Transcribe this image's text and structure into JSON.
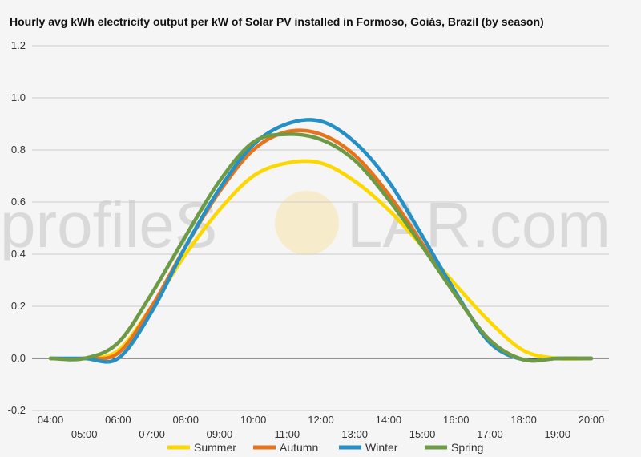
{
  "title": "Hourly avg kWh electricity output per kW of Solar PV installed in Formoso, Goiás, Brazil (by season)",
  "watermark": {
    "left": "profileS",
    "middle": "O",
    "right": "LAR.com"
  },
  "chart_data": {
    "type": "line",
    "title": "Hourly avg kWh electricity output per kW of Solar PV installed in Formoso, Goiás, Brazil (by season)",
    "x": [
      "04:00",
      "05:00",
      "06:00",
      "07:00",
      "08:00",
      "09:00",
      "10:00",
      "11:00",
      "12:00",
      "13:00",
      "14:00",
      "15:00",
      "16:00",
      "17:00",
      "18:00",
      "19:00",
      "20:00"
    ],
    "x_labels_upper": [
      "04:00",
      "06:00",
      "08:00",
      "10:00",
      "12:00",
      "14:00",
      "16:00",
      "18:00",
      "20:00"
    ],
    "x_labels_lower": [
      "05:00",
      "07:00",
      "09:00",
      "11:00",
      "13:00",
      "15:00",
      "17:00",
      "19:00"
    ],
    "ylim": [
      -0.2,
      1.2
    ],
    "yticks": [
      -0.2,
      0.0,
      0.2,
      0.4,
      0.6,
      0.8,
      1.0,
      1.2
    ],
    "ytick_labels": [
      "-0.2",
      "0.0",
      "0.2",
      "0.4",
      "0.6",
      "0.8",
      "1.0",
      "1.2"
    ],
    "grid": true,
    "legend_position": "bottom",
    "series": [
      {
        "name": "Summer",
        "color": "#fcd800",
        "values": [
          0,
          0,
          0.03,
          0.2,
          0.4,
          0.57,
          0.7,
          0.75,
          0.75,
          0.68,
          0.57,
          0.43,
          0.28,
          0.14,
          0.03,
          0,
          0
        ]
      },
      {
        "name": "Autumn",
        "color": "#e8731d",
        "values": [
          0,
          0,
          0.02,
          0.2,
          0.43,
          0.64,
          0.8,
          0.87,
          0.86,
          0.78,
          0.63,
          0.44,
          0.24,
          0.07,
          -0.005,
          0,
          0
        ]
      },
      {
        "name": "Winter",
        "color": "#2490c5",
        "values": [
          0,
          0,
          0.0,
          0.18,
          0.43,
          0.65,
          0.82,
          0.9,
          0.91,
          0.83,
          0.68,
          0.47,
          0.25,
          0.06,
          -0.005,
          0,
          0
        ]
      },
      {
        "name": "Spring",
        "color": "#6c9a45",
        "values": [
          0,
          0,
          0.06,
          0.25,
          0.47,
          0.68,
          0.83,
          0.86,
          0.84,
          0.76,
          0.61,
          0.43,
          0.24,
          0.07,
          -0.005,
          0,
          0
        ]
      }
    ]
  }
}
